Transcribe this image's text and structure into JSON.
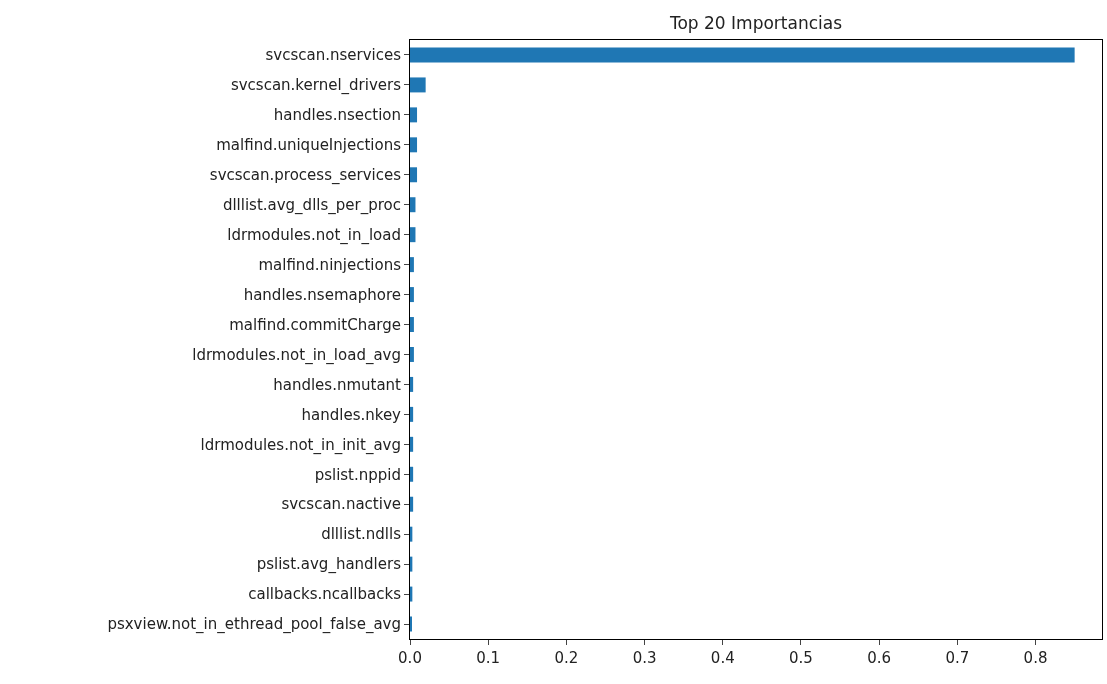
{
  "chart_data": {
    "type": "bar",
    "orientation": "horizontal",
    "title": "Top 20 Importancias",
    "categories": [
      "svcscan.nservices",
      "svcscan.kernel_drivers",
      "handles.nsection",
      "malfind.uniqueInjections",
      "svcscan.process_services",
      "dlllist.avg_dlls_per_proc",
      "ldrmodules.not_in_load",
      "malfind.ninjections",
      "handles.nsemaphore",
      "malfind.commitCharge",
      "ldrmodules.not_in_load_avg",
      "handles.nmutant",
      "handles.nkey",
      "ldrmodules.not_in_init_avg",
      "pslist.nppid",
      "svcscan.nactive",
      "dlllist.ndlls",
      "pslist.avg_handlers",
      "callbacks.ncallbacks",
      "psxview.not_in_ethread_pool_false_avg"
    ],
    "values": [
      0.85,
      0.02,
      0.009,
      0.009,
      0.009,
      0.007,
      0.007,
      0.005,
      0.005,
      0.005,
      0.005,
      0.004,
      0.004,
      0.004,
      0.004,
      0.004,
      0.003,
      0.003,
      0.003,
      0.002
    ],
    "color": "#1f77b4",
    "xlim": [
      0,
      0.885
    ],
    "xticks": [
      {
        "value": 0,
        "label": "0.0"
      },
      0.1,
      0.2,
      0.3,
      0.4,
      0.5,
      0.6,
      0.7,
      0.8
    ]
  }
}
